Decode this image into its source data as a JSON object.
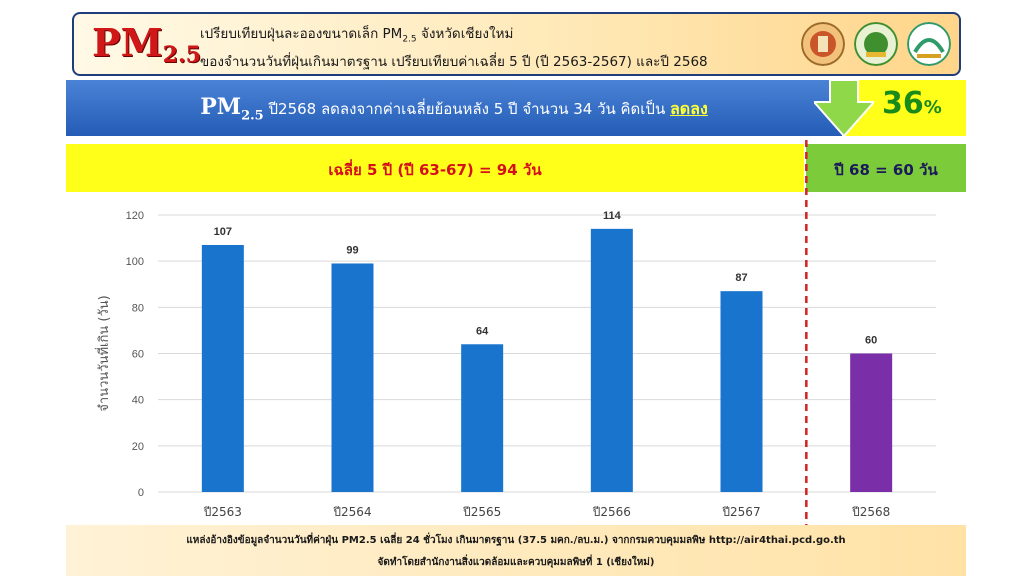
{
  "header": {
    "logo_main": "PM",
    "logo_sub": "2.5",
    "title_line1_a": "เปรียบเทียบฝุ่นละอองขนาดเล็ก PM",
    "title_line1_sub": "2.5",
    "title_line1_b": " จังหวัดเชียงใหม่",
    "title_line2": "ของจำนวนวันที่ฝุ่นเกินมาตรฐาน เปรียบเทียบค่าเฉลี่ย 5 ปี (ปี 2563-2567) และปี 2568",
    "seal_colors": [
      "#c9552a",
      "#3f8f2f",
      "#2f9a6a"
    ]
  },
  "banner": {
    "pm": "PM",
    "pm_sub": "2.5",
    "text": " ปี2568 ลดลงจากค่าเฉลี่ยย้อนหลัง 5 ปี จำนวน 34 วัน คิดเป็น ",
    "direction": "ลดลง",
    "percent": "36",
    "percent_sign": "%"
  },
  "avg_label": "เฉลี่ย 5 ปี (ปี 63-67) = 94 วัน",
  "y68_label": "ปี 68 = 60 วัน",
  "footer": {
    "source": "แหล่งอ้างอิงข้อมูลจำนวนวันที่ค่าฝุ่น PM2.5 เฉลี่ย 24 ชั่วโมง เกินมาตรฐาน (37.5 มคก./ลบ.ม.) จากกรมควบคุมมลพิษ http://air4thai.pcd.go.th",
    "credit": "จัดทำโดยสำนักงานสิ่งแวดล้อมและควบคุมมลพิษที่ 1 (เชียงใหม่)"
  },
  "colors": {
    "bar_main": "#1874cd",
    "bar_highlight": "#7a2fa8",
    "divider": "#d42020"
  },
  "chart_data": {
    "type": "bar",
    "categories": [
      "ปี2563",
      "ปี2564",
      "ปี2565",
      "ปี2566",
      "ปี2567",
      "ปี2568"
    ],
    "values": [
      107,
      99,
      64,
      114,
      87,
      60
    ],
    "ylabel": "จำนวนวันที่เกิน (วัน)",
    "ylim": [
      0,
      120
    ],
    "yticks": [
      0,
      20,
      40,
      60,
      80,
      100,
      120
    ],
    "highlight_index": 5,
    "grid": true
  }
}
